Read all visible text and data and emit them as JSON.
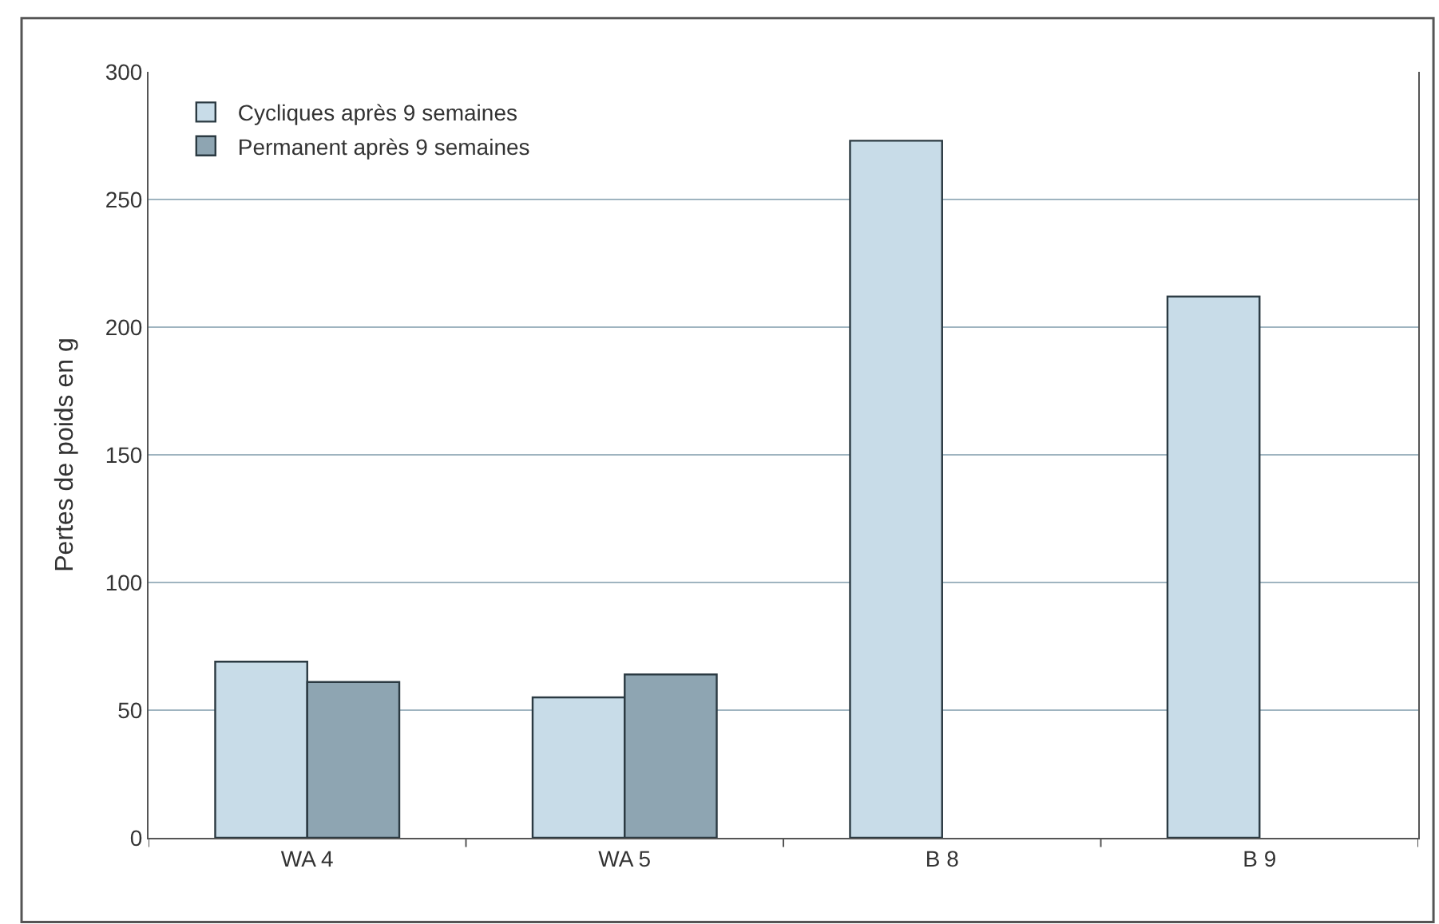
{
  "chart_data": {
    "type": "bar",
    "ylabel": "Pertes de poids en g",
    "categories": [
      "WA 4",
      "WA 5",
      "B 8",
      "B 9"
    ],
    "series": [
      {
        "name": "Cycliques après 9 semaines",
        "color": "#c8dce8",
        "values": [
          69,
          55,
          273,
          212
        ]
      },
      {
        "name": "Permanent après 9 semaines",
        "color": "#8ea5b2",
        "values": [
          61,
          64,
          null,
          null
        ]
      }
    ],
    "ylim": [
      0,
      300
    ],
    "yticks": [
      0,
      50,
      100,
      150,
      200,
      250,
      300
    ],
    "grid": "y",
    "legend": "top left"
  }
}
